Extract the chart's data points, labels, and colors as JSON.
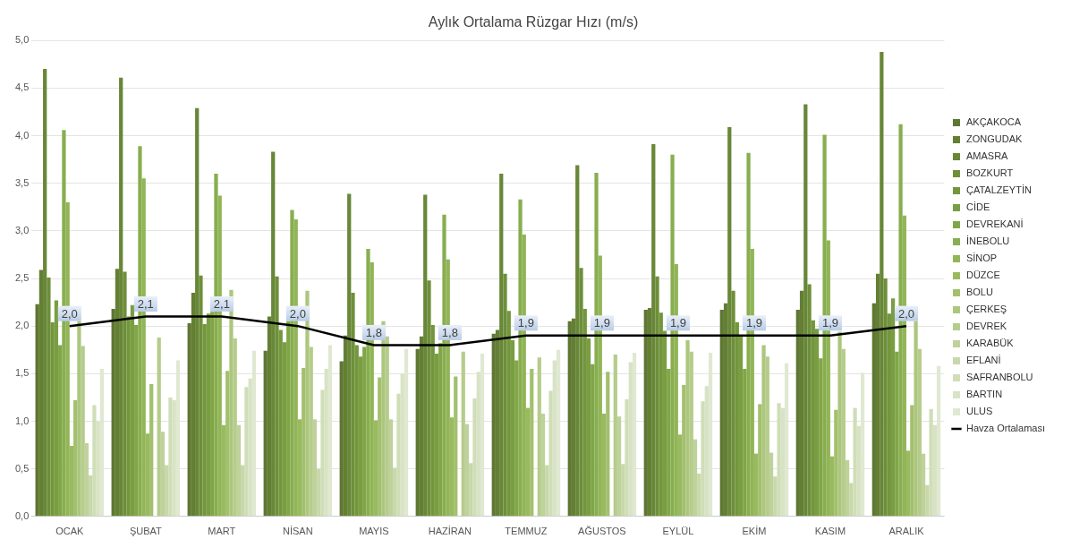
{
  "chart_data": {
    "type": "bar",
    "title": "Aylık Ortalama Rüzgar Hızı (m/s)",
    "categories": [
      "OCAK",
      "ŞUBAT",
      "MART",
      "NİSAN",
      "MAYIS",
      "HAZİRAN",
      "TEMMUZ",
      "AĞUSTOS",
      "EYLÜL",
      "EKİM",
      "KASIM",
      "ARALIK"
    ],
    "series": [
      {
        "name": "AKÇAKOCA",
        "color": "#5e7731",
        "values": [
          2.23,
          2.18,
          2.03,
          1.74,
          1.63,
          1.76,
          1.92,
          2.05,
          2.17,
          2.17,
          2.17,
          2.24
        ]
      },
      {
        "name": "ZONGUDAK",
        "color": "#637f34",
        "values": [
          2.59,
          2.6,
          2.35,
          2.1,
          1.9,
          1.89,
          1.96,
          2.08,
          2.19,
          2.24,
          2.37,
          2.55
        ]
      },
      {
        "name": "AMASRA",
        "color": "#688737",
        "values": [
          4.7,
          4.61,
          4.29,
          3.83,
          3.39,
          3.38,
          3.6,
          3.69,
          3.91,
          4.09,
          4.33,
          4.88
        ]
      },
      {
        "name": "BOZKURT",
        "color": "#6d8f3a",
        "values": [
          2.51,
          2.57,
          2.53,
          2.52,
          2.35,
          2.48,
          2.55,
          2.61,
          2.52,
          2.37,
          2.44,
          2.5
        ]
      },
      {
        "name": "ÇATALZEYTİN",
        "color": "#73963d",
        "values": [
          2.04,
          2.1,
          2.02,
          1.96,
          1.8,
          2.01,
          2.16,
          2.18,
          2.14,
          2.04,
          2.06,
          2.13
        ]
      },
      {
        "name": "CİDE",
        "color": "#799e42",
        "values": [
          2.27,
          2.22,
          2.13,
          1.83,
          1.68,
          1.71,
          1.85,
          1.87,
          1.95,
          1.89,
          1.97,
          2.29
        ]
      },
      {
        "name": "DEVREKANİ",
        "color": "#80a648",
        "values": [
          1.8,
          2.01,
          2.15,
          2.05,
          1.78,
          1.82,
          1.64,
          1.6,
          1.55,
          1.55,
          1.66,
          1.73
        ]
      },
      {
        "name": "İNEBOLU",
        "color": "#88ae4f",
        "values": [
          4.06,
          3.89,
          3.6,
          3.22,
          2.81,
          3.17,
          3.33,
          3.61,
          3.8,
          3.82,
          4.01,
          4.12
        ]
      },
      {
        "name": "SİNOP",
        "color": "#91b557",
        "values": [
          3.3,
          3.55,
          3.37,
          3.12,
          2.67,
          2.7,
          2.96,
          2.74,
          2.65,
          2.81,
          2.9,
          3.16
        ]
      },
      {
        "name": "DÜZCE",
        "color": "#9aba60",
        "values": [
          0.74,
          0.87,
          0.96,
          1.02,
          1.01,
          1.04,
          1.14,
          1.08,
          0.86,
          0.66,
          0.63,
          0.69
        ]
      },
      {
        "name": "BOLU",
        "color": "#a3c06e",
        "values": [
          1.22,
          1.39,
          1.53,
          1.56,
          1.46,
          1.47,
          1.55,
          1.52,
          1.38,
          1.18,
          1.12,
          1.17
        ]
      },
      {
        "name": "ÇERKEŞ",
        "color": "#adc67e",
        "values": [
          2.05,
          null,
          2.38,
          2.37,
          2.05,
          null,
          null,
          null,
          1.85,
          1.8,
          1.94,
          2.05
        ]
      },
      {
        "name": "DEVREK",
        "color": "#b6cc8c",
        "values": [
          1.79,
          1.88,
          1.87,
          1.78,
          1.89,
          1.73,
          1.67,
          1.7,
          1.73,
          1.68,
          1.76,
          1.76
        ]
      },
      {
        "name": "KARABÜK",
        "color": "#bfd29b",
        "values": [
          0.77,
          0.89,
          0.96,
          1.02,
          1.02,
          0.97,
          1.08,
          1.05,
          0.81,
          0.67,
          0.59,
          0.66
        ]
      },
      {
        "name": "EFLANİ",
        "color": "#c8d8aa",
        "values": [
          0.43,
          0.54,
          0.54,
          0.5,
          0.51,
          0.56,
          0.54,
          0.55,
          0.45,
          0.42,
          0.35,
          0.33
        ]
      },
      {
        "name": "SAFRANBOLU",
        "color": "#d0deb8",
        "values": [
          1.17,
          1.25,
          1.36,
          1.33,
          1.29,
          1.24,
          1.32,
          1.23,
          1.21,
          1.19,
          1.14,
          1.13
        ]
      },
      {
        "name": "BARTIN",
        "color": "#d8e3c5",
        "values": [
          1.0,
          1.22,
          1.45,
          1.55,
          1.5,
          1.52,
          1.64,
          1.62,
          1.37,
          1.14,
          0.95,
          0.96
        ]
      },
      {
        "name": "ULUS",
        "color": "#e0e8d2",
        "values": [
          1.55,
          1.64,
          1.74,
          1.8,
          1.76,
          1.71,
          1.75,
          1.72,
          1.72,
          1.61,
          1.51,
          1.58
        ]
      },
      {
        "name": "Havza Ortalaması",
        "type": "line",
        "color": "#000000",
        "marker": "none",
        "values": [
          2.0,
          2.1,
          2.1,
          2.0,
          1.8,
          1.8,
          1.9,
          1.9,
          1.9,
          1.9,
          1.9,
          2.0
        ],
        "value_labels": [
          "2,0",
          "2,1",
          "2,1",
          "2,0",
          "1,8",
          "1,8",
          "1,9",
          "1,9",
          "1,9",
          "1,9",
          "1,9",
          "2,0"
        ]
      }
    ],
    "ylim": [
      0,
      5
    ],
    "yticks": [
      {
        "value": 0,
        "label": "0,0"
      },
      {
        "value": 0.5,
        "label": "0,5"
      },
      {
        "value": 1,
        "label": "1,0"
      },
      {
        "value": 1.5,
        "label": "1,5"
      },
      {
        "value": 2,
        "label": "2,0"
      },
      {
        "value": 2.5,
        "label": "2,5"
      },
      {
        "value": 3,
        "label": "3,0"
      },
      {
        "value": 3.5,
        "label": "3,5"
      },
      {
        "value": 4,
        "label": "4,0"
      },
      {
        "value": 4.5,
        "label": "4,5"
      },
      {
        "value": 5,
        "label": "5,0"
      }
    ],
    "grid": "y",
    "legend": "right"
  }
}
